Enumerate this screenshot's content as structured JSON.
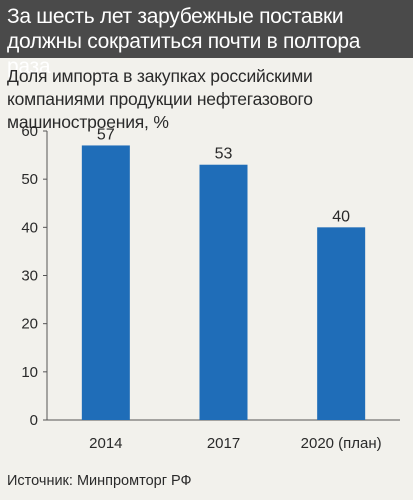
{
  "header": {
    "title": "За шесть лет зарубежные поставки должны сократиться почти в полтора раза"
  },
  "subtitle": "Доля импорта в закупках российскими компаниями продукции нефтегазового машиностроения, %",
  "source": "Источник: Минпромторг РФ",
  "colors": {
    "bar": "#1f6db8",
    "header_bg": "#4a4a4a",
    "background": "#f2f1ec"
  },
  "chart_data": {
    "type": "bar",
    "categories": [
      "2014",
      "2017",
      "2020 (план)"
    ],
    "values": [
      57,
      53,
      40
    ],
    "data_labels": [
      "57",
      "53",
      "40"
    ],
    "ylim": [
      0,
      60
    ],
    "yticks": [
      0,
      10,
      20,
      30,
      40,
      50,
      60
    ],
    "grid": false,
    "legend": "none"
  }
}
